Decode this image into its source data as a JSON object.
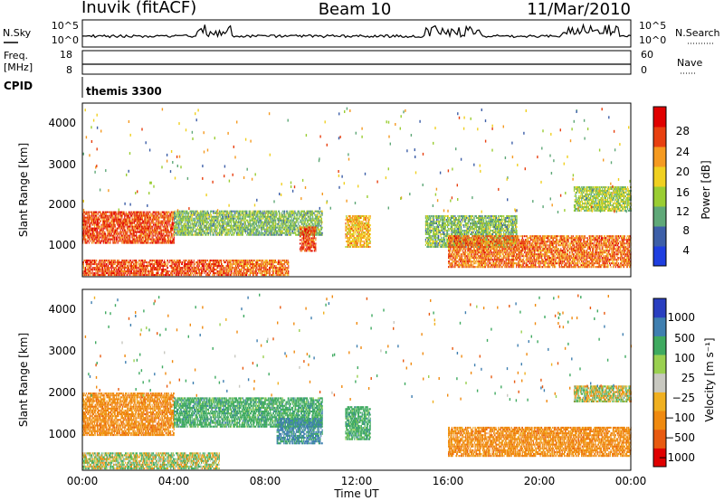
{
  "header": {
    "left": "Inuvik (fitACF)",
    "center": "Beam 10",
    "right": "11/Mar/2010"
  },
  "noise_panel": {
    "left_label": "N.Sky",
    "right_label": "N.Search",
    "left_ticks": [
      "10^5",
      "10^0"
    ],
    "right_ticks": [
      "10^5",
      "10^0"
    ]
  },
  "freq_panel": {
    "left_label_1": "Freq.",
    "left_label_2": "[MHz]",
    "right_label": "Nave",
    "left_ticks": [
      "18",
      "8"
    ],
    "right_ticks": [
      "60",
      "0"
    ]
  },
  "cpid_panel": {
    "label": "CPID",
    "value": "themis 3300"
  },
  "power_panel": {
    "ylabel": "Slant Range [km]",
    "yticks": [
      "4000",
      "3000",
      "2000",
      "1000"
    ],
    "colorbar_label": "Power [dB]",
    "colorbar_ticks": [
      "28",
      "24",
      "20",
      "16",
      "12",
      "8",
      "4"
    ]
  },
  "velocity_panel": {
    "ylabel": "Slant Range [km]",
    "yticks": [
      "4000",
      "3000",
      "2000",
      "1000"
    ],
    "colorbar_label": "Velocity [m s⁻¹]",
    "colorbar_ticks": [
      "1000",
      "500",
      "100",
      "25",
      "−25",
      "−100",
      "−500",
      "−1000"
    ]
  },
  "x_axis": {
    "ticks": [
      "00:00",
      "04:00",
      "08:00",
      "12:00",
      "16:00",
      "20:00",
      "00:00"
    ],
    "label": "Time UT"
  },
  "chart_data": {
    "type": "heatmap",
    "title": "Inuvik (fitACF) Beam 10 11/Mar/2010",
    "xlabel": "Time UT",
    "ylabel": "Slant Range [km]",
    "xlim": [
      "00:00",
      "24:00"
    ],
    "ylim": [
      180,
      4500
    ],
    "grid": false,
    "power_colorscale_dB": [
      4,
      8,
      12,
      16,
      20,
      24,
      28
    ],
    "power_colors": [
      "#1f3fe0",
      "#3d5fa8",
      "#5fa878",
      "#9acd32",
      "#f0d020",
      "#f59a20",
      "#e84010",
      "#e00000"
    ],
    "velocity_colorscale": [
      -1000,
      -500,
      -100,
      -25,
      25,
      100,
      500,
      1000
    ],
    "velocity_colors": [
      "#e00000",
      "#e85a10",
      "#f08a10",
      "#f0b020",
      "#c8c8c0",
      "#9ad050",
      "#3faa60",
      "#3f7fb0",
      "#2a3fc0"
    ],
    "power_regions": [
      {
        "t0": 0.0,
        "t1": 4.0,
        "r0": 1000,
        "r1": 1800,
        "dB": 26
      },
      {
        "t0": 0.0,
        "t1": 6.0,
        "r0": 200,
        "r1": 600,
        "dB": 26
      },
      {
        "t0": 4.0,
        "t1": 10.5,
        "r0": 1200,
        "r1": 1800,
        "dB": 12
      },
      {
        "t0": 6.0,
        "t1": 9.0,
        "r0": 200,
        "r1": 600,
        "dB": 24
      },
      {
        "t0": 9.5,
        "t1": 10.2,
        "r0": 800,
        "r1": 1400,
        "dB": 26
      },
      {
        "t0": 11.5,
        "t1": 12.6,
        "r0": 900,
        "r1": 1700,
        "dB": 20
      },
      {
        "t0": 15.0,
        "t1": 19.0,
        "r0": 900,
        "r1": 1700,
        "dB": 12
      },
      {
        "t0": 16.0,
        "t1": 24.0,
        "r0": 400,
        "r1": 1200,
        "dB": 24
      },
      {
        "t0": 21.5,
        "t1": 24.0,
        "r0": 1800,
        "r1": 2400,
        "dB": 14
      }
    ],
    "velocity_regions": [
      {
        "t0": 0.0,
        "t1": 4.0,
        "r0": 1000,
        "r1": 2000,
        "v": -300
      },
      {
        "t0": 0.0,
        "t1": 6.0,
        "r0": 200,
        "r1": 600,
        "v": 50
      },
      {
        "t0": 4.0,
        "t1": 10.5,
        "r0": 1200,
        "r1": 1900,
        "v": 300
      },
      {
        "t0": 8.5,
        "t1": 10.5,
        "r0": 800,
        "r1": 1400,
        "v": 600
      },
      {
        "t0": 11.5,
        "t1": 12.6,
        "r0": 900,
        "r1": 1700,
        "v": 300
      },
      {
        "t0": 16.0,
        "t1": 24.0,
        "r0": 500,
        "r1": 1200,
        "v": -300
      },
      {
        "t0": 21.5,
        "t1": 24.0,
        "r0": 1800,
        "r1": 2200,
        "v": 0
      }
    ]
  }
}
